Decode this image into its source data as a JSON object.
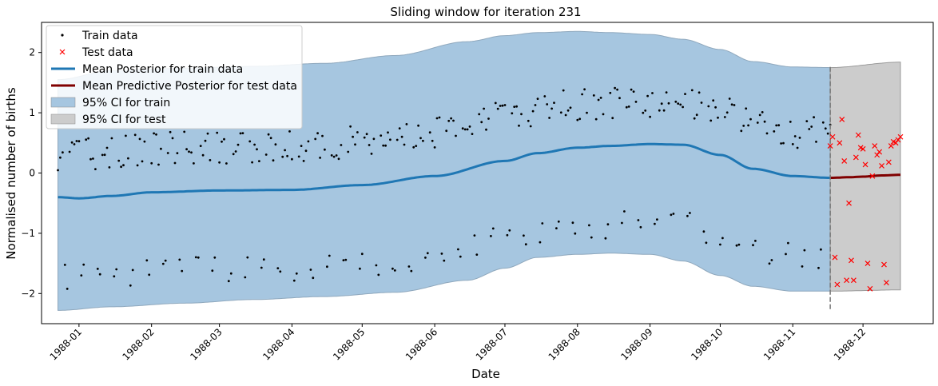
{
  "chart_data": {
    "type": "line",
    "title": "Sliding window for iteration 231",
    "xlabel": "Date",
    "ylabel": "Normalised number of births",
    "x_axis_type": "date",
    "xlim": [
      "1987-12-16",
      "1988-12-31"
    ],
    "ylim": [
      -2.5,
      2.5
    ],
    "xticks": [
      "1988-01-01",
      "1988-02-01",
      "1988-03-01",
      "1988-04-01",
      "1988-05-01",
      "1988-06-01",
      "1988-07-01",
      "1988-08-01",
      "1988-09-01",
      "1988-10-01",
      "1988-11-01",
      "1988-12-01"
    ],
    "xtick_labels": [
      "1988-01",
      "1988-02",
      "1988-03",
      "1988-04",
      "1988-05",
      "1988-06",
      "1988-07",
      "1988-08",
      "1988-09",
      "1988-10",
      "1988-11",
      "1988-12"
    ],
    "yticks": [
      -2,
      -1,
      0,
      1,
      2
    ],
    "ytick_labels": [
      "−2",
      "−1",
      "0",
      "1",
      "2"
    ],
    "grid": false,
    "legend": {
      "position": "top-left",
      "entries": [
        {
          "label": "Train data",
          "marker": "dot",
          "color": "#000000"
        },
        {
          "label": "Test data",
          "marker": "x",
          "color": "#ff0000"
        },
        {
          "label": "Mean Posterior for train data",
          "marker": "line",
          "color": "#1f77b4"
        },
        {
          "label": "Mean Predictive Posterior for test data",
          "marker": "line",
          "color": "#800000"
        },
        {
          "label": "95% CI for train",
          "marker": "patch",
          "color": "#a6c6e0"
        },
        {
          "label": "95% CI for test",
          "marker": "patch",
          "color": "#cccccc"
        }
      ]
    },
    "split_date": "1988-11-17",
    "train_range": [
      "1987-12-23",
      "1988-11-17"
    ],
    "test_range": [
      "1988-11-17",
      "1988-12-17"
    ],
    "train_mean": {
      "x": [
        "1987-12-23",
        "1988-01-01",
        "1988-01-15",
        "1988-02-01",
        "1988-03-01",
        "1988-04-01",
        "1988-05-01",
        "1988-06-01",
        "1988-07-01",
        "1988-07-15",
        "1988-08-01",
        "1988-08-15",
        "1988-09-01",
        "1988-09-15",
        "1988-10-01",
        "1988-10-15",
        "1988-11-01",
        "1988-11-17"
      ],
      "y": [
        -0.4,
        -0.42,
        -0.38,
        -0.32,
        -0.29,
        -0.28,
        -0.2,
        -0.05,
        0.2,
        0.33,
        0.42,
        0.45,
        0.48,
        0.47,
        0.3,
        0.07,
        -0.05,
        -0.08
      ]
    },
    "train_ci_upper": {
      "x": [
        "1987-12-23",
        "1988-01-15",
        "1988-02-15",
        "1988-03-15",
        "1988-04-15",
        "1988-05-15",
        "1988-06-15",
        "1988-07-01",
        "1988-07-15",
        "1988-08-01",
        "1988-08-15",
        "1988-09-01",
        "1988-09-15",
        "1988-10-01",
        "1988-10-15",
        "1988-11-01",
        "1988-11-17"
      ],
      "y": [
        1.55,
        1.7,
        1.74,
        1.77,
        1.82,
        1.95,
        2.18,
        2.28,
        2.33,
        2.35,
        2.33,
        2.3,
        2.22,
        2.05,
        1.85,
        1.76,
        1.75
      ]
    },
    "train_ci_lower": {
      "x": [
        "1987-12-23",
        "1988-01-15",
        "1988-02-15",
        "1988-03-15",
        "1988-04-15",
        "1988-05-15",
        "1988-06-15",
        "1988-07-01",
        "1988-07-15",
        "1988-08-01",
        "1988-08-15",
        "1988-09-01",
        "1988-09-15",
        "1988-10-01",
        "1988-10-15",
        "1988-11-01",
        "1988-11-17"
      ],
      "y": [
        -2.28,
        -2.22,
        -2.16,
        -2.1,
        -2.05,
        -1.98,
        -1.78,
        -1.58,
        -1.4,
        -1.35,
        -1.33,
        -1.35,
        -1.46,
        -1.7,
        -1.88,
        -1.96,
        -1.96
      ]
    },
    "test_mean": {
      "x": [
        "1988-11-17",
        "1988-11-25",
        "1988-12-01",
        "1988-12-09",
        "1988-12-17"
      ],
      "y": [
        -0.08,
        -0.07,
        -0.06,
        -0.04,
        -0.03
      ]
    },
    "test_ci_upper": {
      "x": [
        "1988-11-17",
        "1988-12-17"
      ],
      "y": [
        1.75,
        1.84
      ]
    },
    "test_ci_lower": {
      "x": [
        "1988-11-17",
        "1988-12-17"
      ],
      "y": [
        -1.96,
        -1.94
      ]
    },
    "train_points_description": "daily normalised births; weekday values cluster around the mean curve plus about 0.7, weekend values around the mean minus about 1.3",
    "test_points": {
      "x": [
        "1988-11-17",
        "1988-11-18",
        "1988-11-19",
        "1988-11-20",
        "1988-11-21",
        "1988-11-22",
        "1988-11-23",
        "1988-11-24",
        "1988-11-25",
        "1988-11-26",
        "1988-11-27",
        "1988-11-28",
        "1988-11-29",
        "1988-11-30",
        "1988-12-01",
        "1988-12-02",
        "1988-12-03",
        "1988-12-04",
        "1988-12-05",
        "1988-12-06",
        "1988-12-07",
        "1988-12-08",
        "1988-12-09",
        "1988-12-10",
        "1988-12-11",
        "1988-12-12",
        "1988-12-13",
        "1988-12-14",
        "1988-12-15",
        "1988-12-16",
        "1988-12-17"
      ],
      "y": [
        0.45,
        0.6,
        -1.4,
        -1.85,
        0.5,
        0.89,
        0.2,
        -1.78,
        -0.5,
        -1.45,
        -1.78,
        0.26,
        0.63,
        0.42,
        0.4,
        0.14,
        -1.5,
        -1.92,
        -0.05,
        0.45,
        0.3,
        0.35,
        0.12,
        -1.52,
        -1.82,
        0.18,
        0.45,
        0.52,
        0.5,
        0.55,
        0.6
      ]
    }
  }
}
